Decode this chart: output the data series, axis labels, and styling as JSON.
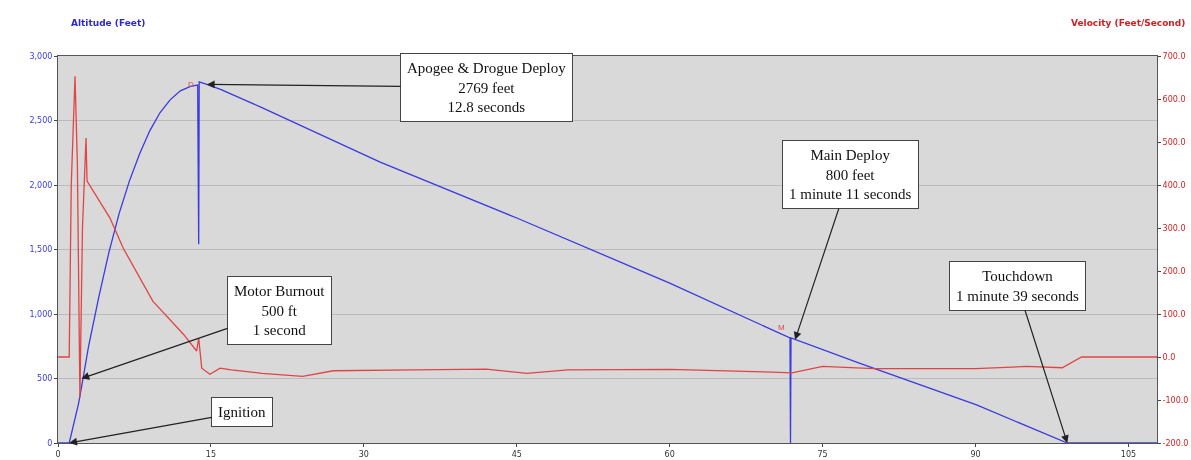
{
  "chart_data": {
    "type": "line",
    "ylabel": "Altitude (Feet)",
    "y2label": "Velocity (Feet/Second)",
    "xlim": [
      0,
      107.8
    ],
    "xticks": [
      0,
      15,
      30,
      45,
      60,
      75,
      90,
      105
    ],
    "ylim": [
      0,
      3000
    ],
    "yticks": [
      {
        "value": 0,
        "label": "0"
      },
      {
        "value": 500,
        "label": "500"
      },
      {
        "value": 1000,
        "label": "1,000"
      },
      {
        "value": 1500,
        "label": "1,500"
      },
      {
        "value": 2000,
        "label": "2,000"
      },
      {
        "value": 2500,
        "label": "2,500"
      },
      {
        "value": 3000,
        "label": "3,000"
      }
    ],
    "y2lim": [
      -200,
      700
    ],
    "y2ticks": [
      {
        "value": -200,
        "label": "-200.0"
      },
      {
        "value": -100,
        "label": "-100.0"
      },
      {
        "value": 0,
        "label": "0.0"
      },
      {
        "value": 100,
        "label": "100.0"
      },
      {
        "value": 200,
        "label": "200.0"
      },
      {
        "value": 300,
        "label": "300.0"
      },
      {
        "value": 400,
        "label": "400.0"
      },
      {
        "value": 500,
        "label": "500.0"
      },
      {
        "value": 600,
        "label": "600.0"
      },
      {
        "value": 700,
        "label": "700.0"
      }
    ],
    "grid": "y",
    "marker": "none",
    "line_style": "solid",
    "series": [
      {
        "color": "#3a3ae0",
        "x": [
          0,
          1.1,
          2,
          2.5,
          3,
          4,
          5,
          6,
          7,
          8,
          9,
          10,
          11,
          12,
          13,
          13.7,
          13.8,
          13.85,
          14.6,
          16,
          20,
          31.6,
          45,
          60,
          71.8,
          71.85,
          71.9,
          78.6,
          90.1,
          99,
          107.8
        ],
        "values": [
          0,
          0,
          300,
          520,
          750,
          1130,
          1480,
          1780,
          2030,
          2240,
          2420,
          2560,
          2660,
          2730,
          2765,
          2775,
          1540,
          2800,
          2780,
          2740,
          2600,
          2178,
          1744,
          1240,
          814,
          0,
          814,
          620,
          295,
          0,
          0
        ]
      },
      {
        "color": "#e04545",
        "axis": "y2",
        "x": [
          0,
          1.1,
          1.3,
          1.67,
          1.9,
          2.15,
          2.4,
          2.75,
          2.85,
          5.1,
          6.4,
          9.3,
          12.3,
          13.6,
          13.8,
          14.1,
          14.9,
          15.9,
          17,
          20,
          24,
          27,
          35,
          42,
          46,
          50,
          60,
          70,
          72,
          75,
          80,
          90,
          95,
          98.5,
          100.4,
          107.8
        ],
        "values": [
          0,
          0,
          400,
          653,
          450,
          -95,
          300,
          509,
          409,
          323,
          253,
          130,
          53,
          14,
          44,
          -26,
          -40,
          -26,
          -30,
          -38,
          -45,
          -32,
          -30,
          -28,
          -38,
          -30,
          -29,
          -35,
          -37,
          -22,
          -27,
          -27,
          -22,
          -25,
          0,
          0
        ]
      }
    ],
    "annotations": [
      {
        "text": "Apogee & Drogue Deploy\n2769 feet\n12.8 seconds",
        "x": 14.6,
        "y": 2780
      },
      {
        "text": "Motor Burnout\n500 ft\n1 second",
        "x": 2.3,
        "y": 500
      },
      {
        "text": "Ignition",
        "x": 1.1,
        "y": 0
      },
      {
        "text": "Main Deploy\n800 feet\n1 minute 11 seconds",
        "x": 72.3,
        "y": 800
      },
      {
        "text": "Touchdown\n1 minute 39 seconds",
        "x": 99,
        "y": 0
      },
      {
        "text": "D",
        "x": 13.8,
        "y": 2700
      },
      {
        "text": "M",
        "x": 71.8,
        "y": 814
      }
    ]
  }
}
